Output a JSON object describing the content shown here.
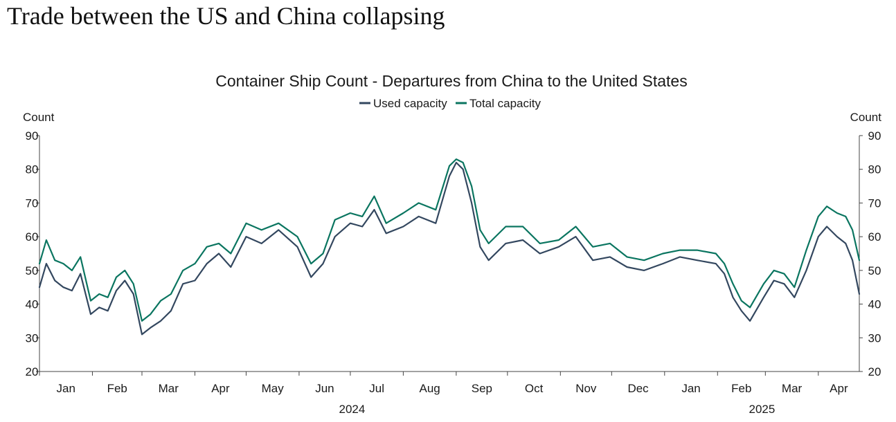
{
  "headline": "Trade between the US and China collapsing",
  "colors": {
    "used": "#33475f",
    "total": "#0a7560",
    "axis": "#444444"
  },
  "chart_data": {
    "type": "line",
    "title": "Container Ship Count - Departures from China to the United States",
    "ylabel_left": "Count",
    "ylabel_right": "Count",
    "ylim": [
      20,
      90
    ],
    "yticks": [
      20,
      30,
      40,
      50,
      60,
      70,
      80,
      90
    ],
    "grid": false,
    "legend_position": "top-center",
    "x_month_labels": [
      "Jan",
      "Feb",
      "Mar",
      "Apr",
      "May",
      "Jun",
      "Jul",
      "Aug",
      "Sep",
      "Oct",
      "Nov",
      "Dec",
      "Jan",
      "Feb",
      "Mar",
      "Apr"
    ],
    "x_year_labels": [
      "2024",
      "2025"
    ],
    "x_start": "2024-01-01",
    "x_end": "2025-04-25",
    "series": [
      {
        "name": "Used capacity",
        "x": [
          "2024-01-01",
          "2024-01-05",
          "2024-01-10",
          "2024-01-15",
          "2024-01-20",
          "2024-01-25",
          "2024-01-31",
          "2024-02-05",
          "2024-02-10",
          "2024-02-15",
          "2024-02-20",
          "2024-02-25",
          "2024-03-01",
          "2024-03-06",
          "2024-03-12",
          "2024-03-18",
          "2024-03-25",
          "2024-04-01",
          "2024-04-08",
          "2024-04-15",
          "2024-04-22",
          "2024-05-01",
          "2024-05-10",
          "2024-05-20",
          "2024-05-31",
          "2024-06-08",
          "2024-06-15",
          "2024-06-22",
          "2024-07-01",
          "2024-07-08",
          "2024-07-15",
          "2024-07-22",
          "2024-08-01",
          "2024-08-10",
          "2024-08-20",
          "2024-08-28",
          "2024-09-01",
          "2024-09-05",
          "2024-09-10",
          "2024-09-15",
          "2024-09-20",
          "2024-09-30",
          "2024-10-10",
          "2024-10-20",
          "2024-10-31",
          "2024-11-10",
          "2024-11-20",
          "2024-11-30",
          "2024-12-10",
          "2024-12-20",
          "2024-12-31",
          "2025-01-10",
          "2025-01-20",
          "2025-01-31",
          "2025-02-05",
          "2025-02-10",
          "2025-02-15",
          "2025-02-20",
          "2025-02-28",
          "2025-03-06",
          "2025-03-12",
          "2025-03-18",
          "2025-03-25",
          "2025-04-01",
          "2025-04-06",
          "2025-04-12",
          "2025-04-17",
          "2025-04-21",
          "2025-04-25"
        ],
        "values": [
          45,
          52,
          47,
          45,
          44,
          49,
          37,
          39,
          38,
          44,
          47,
          43,
          31,
          33,
          35,
          38,
          46,
          47,
          52,
          55,
          51,
          60,
          58,
          62,
          57,
          48,
          52,
          60,
          64,
          63,
          68,
          61,
          63,
          66,
          64,
          78,
          82,
          80,
          70,
          57,
          53,
          58,
          59,
          55,
          57,
          60,
          53,
          54,
          51,
          50,
          52,
          54,
          53,
          52,
          49,
          42,
          38,
          35,
          42,
          47,
          46,
          42,
          50,
          60,
          63,
          60,
          58,
          53,
          43
        ]
      },
      {
        "name": "Total capacity",
        "x": [
          "2024-01-01",
          "2024-01-05",
          "2024-01-10",
          "2024-01-15",
          "2024-01-20",
          "2024-01-25",
          "2024-01-31",
          "2024-02-05",
          "2024-02-10",
          "2024-02-15",
          "2024-02-20",
          "2024-02-25",
          "2024-03-01",
          "2024-03-06",
          "2024-03-12",
          "2024-03-18",
          "2024-03-25",
          "2024-04-01",
          "2024-04-08",
          "2024-04-15",
          "2024-04-22",
          "2024-05-01",
          "2024-05-10",
          "2024-05-20",
          "2024-05-31",
          "2024-06-08",
          "2024-06-15",
          "2024-06-22",
          "2024-07-01",
          "2024-07-08",
          "2024-07-15",
          "2024-07-22",
          "2024-08-01",
          "2024-08-10",
          "2024-08-20",
          "2024-08-28",
          "2024-09-01",
          "2024-09-05",
          "2024-09-10",
          "2024-09-15",
          "2024-09-20",
          "2024-09-30",
          "2024-10-10",
          "2024-10-20",
          "2024-10-31",
          "2024-11-10",
          "2024-11-20",
          "2024-11-30",
          "2024-12-10",
          "2024-12-20",
          "2024-12-31",
          "2025-01-10",
          "2025-01-20",
          "2025-01-31",
          "2025-02-05",
          "2025-02-10",
          "2025-02-15",
          "2025-02-20",
          "2025-02-28",
          "2025-03-06",
          "2025-03-12",
          "2025-03-18",
          "2025-03-25",
          "2025-04-01",
          "2025-04-06",
          "2025-04-12",
          "2025-04-17",
          "2025-04-21",
          "2025-04-25"
        ],
        "values": [
          52,
          59,
          53,
          52,
          50,
          54,
          41,
          43,
          42,
          48,
          50,
          46,
          35,
          37,
          41,
          43,
          50,
          52,
          57,
          58,
          55,
          64,
          62,
          64,
          60,
          52,
          55,
          65,
          67,
          66,
          72,
          64,
          67,
          70,
          68,
          81,
          83,
          82,
          75,
          62,
          58,
          63,
          63,
          58,
          59,
          63,
          57,
          58,
          54,
          53,
          55,
          56,
          56,
          55,
          52,
          46,
          41,
          39,
          46,
          50,
          49,
          45,
          56,
          66,
          69,
          67,
          66,
          62,
          53
        ]
      }
    ]
  }
}
